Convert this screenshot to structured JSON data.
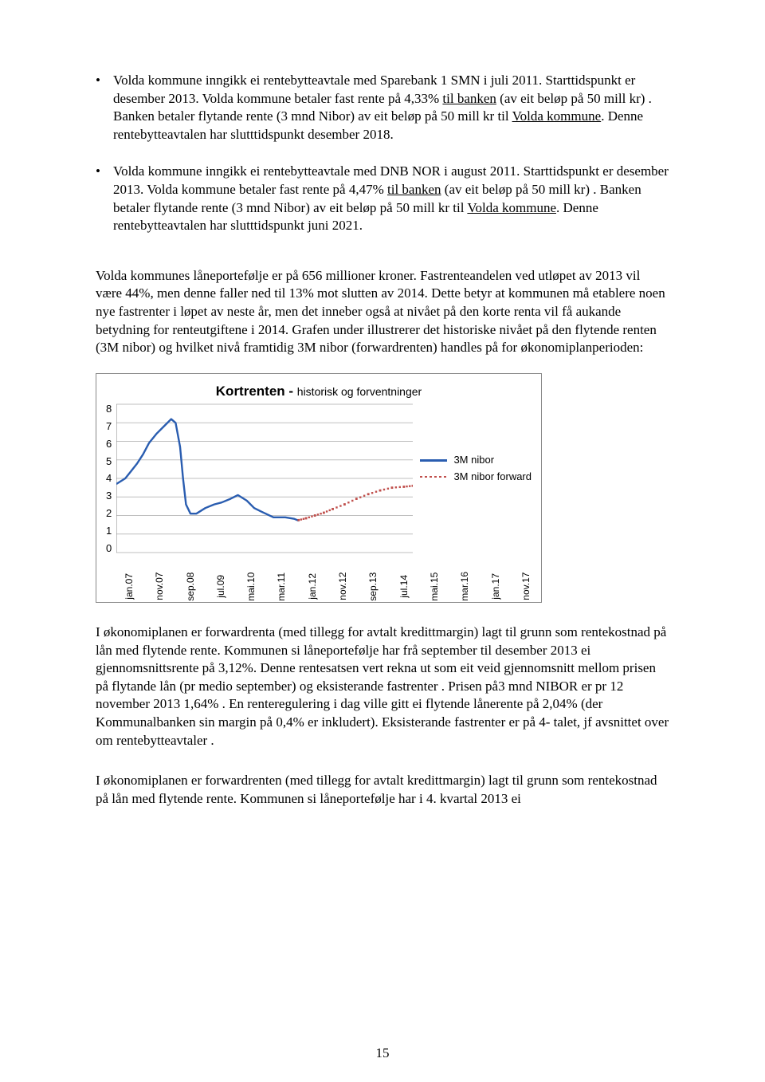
{
  "bullets": [
    {
      "t1": "Volda kommune inngikk ei rentebytteavtale med Sparebank 1 SMN i juli 2011. Starttidspunkt er desember 2013. Volda kommune betaler fast rente på 4,33% ",
      "u1": "til banken",
      "t2": " (av eit beløp på 50 mill kr) . Banken betaler flytande rente (3 mnd Nibor) av eit beløp på 50 mill kr til ",
      "u2": "Volda kommune",
      "t3": ". Denne rentebytteavtalen har slutttidspunkt desember 2018."
    },
    {
      "t1": "Volda kommune inngikk ei rentebytteavtale med DNB NOR i august 2011. Starttidspunkt er desember 2013. Volda kommune betaler fast rente på 4,47%  ",
      "u1": "til banken",
      "t2": " (av eit beløp på 50 mill kr) . Banken betaler flytande rente (3 mnd Nibor) av eit beløp på 50 mill kr til ",
      "u2": "Volda kommune",
      "t3": ". Denne rentebytteavtalen har slutttidspunkt juni 2021."
    }
  ],
  "para1": "Volda kommunes låneportefølje er på 656 millioner kroner. Fastrenteandelen ved utløpet av 2013 vil være 44%, men denne faller ned til 13% mot slutten av 2014. Dette betyr at kommunen må etablere noen nye fastrenter i løpet av neste år, men det inneber også at nivået på den korte renta vil få aukande betydning for renteutgiftene i 2014. Grafen under illustrerer det historiske nivået på den flytende renten (3M nibor) og hvilket nivå framtidig 3M nibor (forwardrenten) handles på for økonomiplanperioden:",
  "chart": {
    "title_bold": "Kortrenten - ",
    "title_rest": "historisk og forventninger",
    "yticks": [
      "8",
      "7",
      "6",
      "5",
      "4",
      "3",
      "2",
      "1",
      "0"
    ],
    "xticks": [
      "jan.07",
      "nov.07",
      "sep.08",
      "jul.09",
      "mai.10",
      "mar.11",
      "jan.12",
      "nov.12",
      "sep.13",
      "jul.14",
      "mai.15",
      "mar.16",
      "jan.17",
      "nov.17"
    ],
    "legend1": "3M nibor",
    "legend2": "3M nibor forward",
    "colors": {
      "nibor": "#2a5db0",
      "forward": "#c0504d",
      "grid": "#bfbfbf",
      "axis": "#808080",
      "bg": "#ffffff"
    },
    "ylim": [
      0,
      8
    ],
    "series_nibor": [
      {
        "x": 0.0,
        "y": 3.7
      },
      {
        "x": 0.03,
        "y": 4.0
      },
      {
        "x": 0.05,
        "y": 4.4
      },
      {
        "x": 0.07,
        "y": 4.8
      },
      {
        "x": 0.09,
        "y": 5.3
      },
      {
        "x": 0.11,
        "y": 5.9
      },
      {
        "x": 0.135,
        "y": 6.4
      },
      {
        "x": 0.16,
        "y": 6.8
      },
      {
        "x": 0.185,
        "y": 7.2
      },
      {
        "x": 0.2,
        "y": 7.0
      },
      {
        "x": 0.215,
        "y": 5.7
      },
      {
        "x": 0.225,
        "y": 4.0
      },
      {
        "x": 0.235,
        "y": 2.6
      },
      {
        "x": 0.25,
        "y": 2.1
      },
      {
        "x": 0.27,
        "y": 2.1
      },
      {
        "x": 0.3,
        "y": 2.4
      },
      {
        "x": 0.33,
        "y": 2.6
      },
      {
        "x": 0.355,
        "y": 2.7
      },
      {
        "x": 0.385,
        "y": 2.9
      },
      {
        "x": 0.41,
        "y": 3.1
      },
      {
        "x": 0.44,
        "y": 2.8
      },
      {
        "x": 0.465,
        "y": 2.4
      },
      {
        "x": 0.49,
        "y": 2.2
      },
      {
        "x": 0.53,
        "y": 1.9
      },
      {
        "x": 0.57,
        "y": 1.9
      },
      {
        "x": 0.6,
        "y": 1.82
      },
      {
        "x": 0.615,
        "y": 1.72
      }
    ],
    "series_forward": [
      {
        "x": 0.615,
        "y": 1.75
      },
      {
        "x": 0.64,
        "y": 1.85
      },
      {
        "x": 0.67,
        "y": 2.0
      },
      {
        "x": 0.7,
        "y": 2.15
      },
      {
        "x": 0.73,
        "y": 2.35
      },
      {
        "x": 0.77,
        "y": 2.6
      },
      {
        "x": 0.81,
        "y": 2.9
      },
      {
        "x": 0.85,
        "y": 3.15
      },
      {
        "x": 0.89,
        "y": 3.35
      },
      {
        "x": 0.93,
        "y": 3.5
      },
      {
        "x": 0.97,
        "y": 3.55
      },
      {
        "x": 1.0,
        "y": 3.6
      }
    ]
  },
  "para2": "I økonomiplanen er forwardrenta (med tillegg for avtalt kredittmargin) lagt til grunn som rentekostnad på lån med flytende rente. Kommunen si låneportefølje har  frå september til desember 2013 ei gjennomsnittsrente på 3,12%. Denne rentesatsen vert rekna ut som eit veid gjennomsnitt mellom prisen på flytande lån (pr medio september) og eksisterande fastrenter . Prisen på3  mnd NIBOR er pr 12 november 2013 1,64% . En renteregulering i dag ville gitt ei flytende lånerente på 2,04% (der Kommunalbanken sin margin på 0,4% er inkludert). Eksisterande fastrenter er på 4- talet, jf avsnittet over  om rentebytteavtaler .",
  "para3": "I økonomiplanen er forwardrenten (med tillegg for avtalt kredittmargin) lagt til grunn som rentekostnad på lån med flytende rente. Kommunen si låneportefølje har i 4. kvartal 2013 ei",
  "pageNumber": "15"
}
